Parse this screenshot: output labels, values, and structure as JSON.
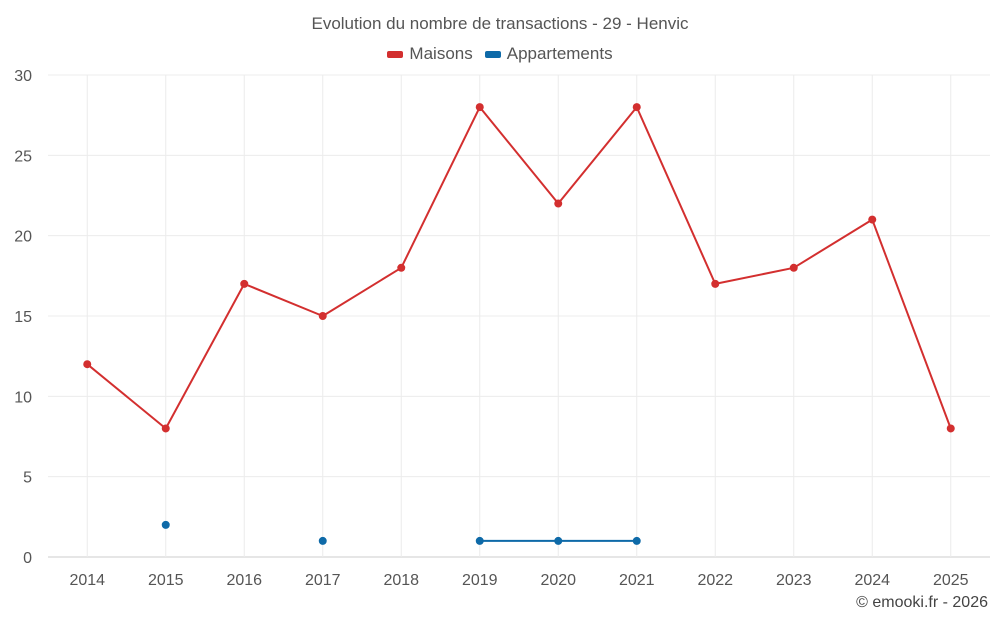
{
  "chart_data": {
    "type": "line",
    "title": "Evolution du nombre de transactions - 29 - Henvic",
    "xlabel": "",
    "ylabel": "",
    "categories": [
      "2014",
      "2015",
      "2016",
      "2017",
      "2018",
      "2019",
      "2020",
      "2021",
      "2022",
      "2023",
      "2024",
      "2025"
    ],
    "ylim": [
      0,
      30
    ],
    "yticks": [
      0,
      5,
      10,
      15,
      20,
      25,
      30
    ],
    "grid": true,
    "legend_position": "top-center",
    "series": [
      {
        "name": "Maisons",
        "color": "#d32f2f",
        "values": [
          12,
          8,
          17,
          15,
          18,
          28,
          22,
          28,
          17,
          18,
          21,
          8
        ]
      },
      {
        "name": "Appartements",
        "color": "#0e6aa8",
        "values": [
          null,
          2,
          null,
          1,
          null,
          1,
          1,
          1,
          null,
          null,
          null,
          null
        ]
      }
    ]
  },
  "credit": "© emooki.fr - 2026"
}
